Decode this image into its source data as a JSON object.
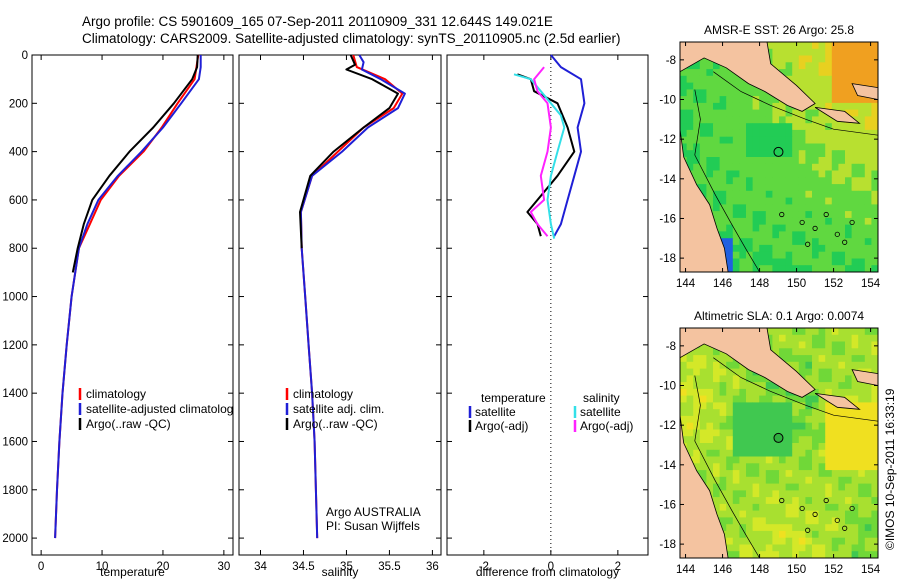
{
  "header": {
    "line1": "Argo profile: CS 5901609_165 07-Sep-2011 20110909_331 12.644S 149.021E",
    "line2": "Climatology: CARS2009. Satellite-adjusted climatology: synTS_20110905.nc (2.5d earlier)"
  },
  "colors": {
    "climatology": "#ff0000",
    "satellite": "#1f1fd6",
    "argo": "#000000",
    "satellite_salinity": "#33e0e8",
    "argo_adj_salinity": "#ff22ff",
    "land": "#f4c3a0"
  },
  "chart_data": [
    {
      "id": "temperature",
      "type": "line",
      "xlabel": "temperature",
      "xlim": [
        -1.5,
        31.5
      ],
      "xticks": [
        0,
        10,
        20,
        30
      ],
      "ylim": [
        2070,
        0
      ],
      "yticks": [
        0,
        200,
        400,
        600,
        800,
        1000,
        1200,
        1400,
        1600,
        1800,
        2000
      ],
      "legend": [
        "climatology",
        "satellite-adjusted climatolog",
        "Argo(..raw -QC)"
      ],
      "series": [
        {
          "name": "climatology",
          "color": "#ff0000",
          "x": [
            25.8,
            25.2,
            22.4,
            19.8,
            16.8,
            12.8,
            9.8,
            8.0,
            6.2,
            5.0,
            4.2,
            3.5,
            3.0,
            2.6,
            2.3
          ],
          "y": [
            0,
            100,
            200,
            300,
            400,
            500,
            600,
            700,
            800,
            1000,
            1200,
            1400,
            1600,
            1800,
            2000
          ]
        },
        {
          "name": "satellite-adjusted climatolog",
          "color": "#1f1fd6",
          "x": [
            26.2,
            26.2,
            25.9,
            23.0,
            20.0,
            16.5,
            12.6,
            9.4,
            7.6,
            6.2,
            5.0,
            4.2,
            3.5,
            3.0,
            2.6,
            2.3
          ],
          "y": [
            0,
            50,
            100,
            200,
            300,
            400,
            500,
            600,
            700,
            800,
            1000,
            1200,
            1400,
            1600,
            1800,
            2000
          ]
        },
        {
          "name": "Argo(..raw -QC)",
          "color": "#000000",
          "x": [
            25.7,
            25.6,
            24.8,
            21.8,
            18.4,
            14.5,
            11.2,
            8.4,
            7.0,
            6.0,
            5.2
          ],
          "y": [
            0,
            50,
            100,
            200,
            300,
            400,
            500,
            600,
            700,
            800,
            900
          ]
        }
      ]
    },
    {
      "id": "salinity",
      "type": "line",
      "xlabel": "salinity",
      "xlim": [
        33.75,
        36.1
      ],
      "xticks": [
        34,
        34.5,
        35,
        35.5,
        36
      ],
      "ylim": [
        2070,
        0
      ],
      "legend": [
        "climatology",
        "satellite adj. clim.",
        "Argo(..raw -QC)"
      ],
      "annotation": [
        "Argo AUSTRALIA",
        "PI: Susan Wijffels"
      ],
      "series": [
        {
          "name": "climatology",
          "color": "#ff0000",
          "x": [
            35.08,
            35.12,
            35.45,
            35.65,
            35.55,
            35.2,
            34.9,
            34.6,
            34.47,
            34.48,
            34.52,
            34.56,
            34.6,
            34.63,
            34.66
          ],
          "y": [
            0,
            50,
            100,
            160,
            220,
            300,
            400,
            500,
            650,
            800,
            1000,
            1200,
            1400,
            1600,
            2000
          ]
        },
        {
          "name": "satellite adj. clim.",
          "color": "#1f1fd6",
          "x": [
            35.15,
            35.2,
            35.18,
            35.4,
            35.68,
            35.6,
            35.25,
            34.95,
            34.6,
            34.47,
            34.48,
            34.52,
            34.56,
            34.6,
            34.63,
            34.66
          ],
          "y": [
            0,
            30,
            60,
            100,
            160,
            220,
            300,
            400,
            500,
            650,
            800,
            1000,
            1200,
            1400,
            1600,
            2000
          ]
        },
        {
          "name": "Argo(..raw -QC)",
          "color": "#000000",
          "x": [
            35.05,
            35.1,
            35.0,
            35.3,
            35.6,
            35.5,
            35.2,
            34.85,
            34.58,
            34.46,
            34.48
          ],
          "y": [
            0,
            40,
            60,
            100,
            160,
            220,
            300,
            400,
            500,
            650,
            800
          ]
        }
      ]
    },
    {
      "id": "difference",
      "type": "line",
      "xlabel": "difference from climatology",
      "xlim": [
        -3.1,
        2.9
      ],
      "xticks": [
        -2,
        0,
        2
      ],
      "ylim": [
        2070,
        0
      ],
      "legend_temperature": [
        "temperature",
        "satellite",
        "Argo(-adj)"
      ],
      "legend_salinity": [
        "salinity",
        "satellite",
        "Argo(-adj)"
      ],
      "series": [
        {
          "name": "satellite",
          "group": "temperature",
          "color": "#1f1fd6",
          "x": [
            0.0,
            0.3,
            0.9,
            1.0,
            0.8,
            0.9,
            0.7,
            0.5,
            0.3,
            0.1
          ],
          "y": [
            0,
            50,
            100,
            200,
            300,
            400,
            500,
            600,
            700,
            750
          ]
        },
        {
          "name": "Argo(-adj)",
          "group": "temperature",
          "color": "#000000",
          "x": [
            -1.0,
            -0.6,
            -0.5,
            0.2,
            0.5,
            0.7,
            0.2,
            -0.4,
            -0.7,
            -0.4,
            -0.3
          ],
          "y": [
            80,
            100,
            150,
            200,
            300,
            400,
            500,
            600,
            650,
            700,
            750
          ]
        },
        {
          "name": "satellite",
          "group": "salinity",
          "color": "#33e0e8",
          "x": [
            -1.1,
            -0.6,
            -0.3,
            0.0,
            0.3,
            0.4,
            0.2,
            0.0,
            -0.1,
            0.0,
            0.1
          ],
          "y": [
            80,
            100,
            150,
            200,
            250,
            300,
            400,
            500,
            600,
            700,
            760
          ]
        },
        {
          "name": "Argo(-adj)",
          "group": "salinity",
          "color": "#ff22ff",
          "x": [
            -0.2,
            -0.5,
            -0.4,
            -0.1,
            0.0,
            -0.1,
            -0.3,
            -0.2,
            -0.6,
            -0.4,
            -0.1
          ],
          "y": [
            50,
            100,
            150,
            200,
            300,
            400,
            500,
            600,
            650,
            700,
            750
          ]
        }
      ]
    },
    {
      "id": "sst_map",
      "type": "heatmap",
      "title": "AMSR-E SST: 26 Argo: 25.8",
      "xlim": [
        143.7,
        154.4
      ],
      "ylim": [
        -18.7,
        -7.1
      ],
      "xticks": [
        144,
        146,
        148,
        150,
        152,
        154
      ],
      "yticks": [
        -8,
        -10,
        -12,
        -14,
        -16,
        -18
      ],
      "profile_location": {
        "lon": 149.021,
        "lat": -12.644
      }
    },
    {
      "id": "sla_map",
      "type": "heatmap",
      "title": "Altimetric SLA: 0.1 Argo: 0.0074",
      "xlim": [
        143.7,
        154.4
      ],
      "ylim": [
        -18.7,
        -7.1
      ],
      "xticks": [
        144,
        146,
        148,
        150,
        152,
        154
      ],
      "yticks": [
        -8,
        -10,
        -12,
        -14,
        -16,
        -18
      ],
      "profile_location": {
        "lon": 149.021,
        "lat": -12.644
      }
    }
  ],
  "credit": "©IMOS 10-Sep-2011 16:33:19"
}
